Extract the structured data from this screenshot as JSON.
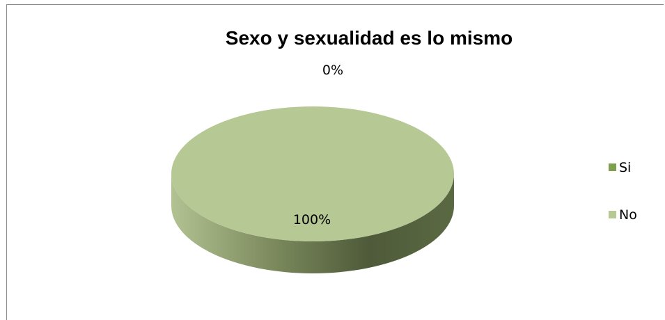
{
  "chart_data": {
    "type": "pie",
    "title": "Sexo y sexualidad es lo mismo",
    "categories": [
      "Si",
      "No"
    ],
    "values": [
      0,
      100
    ],
    "data_labels": [
      "0%",
      "100%"
    ],
    "colors": [
      "#7F9F4F",
      "#B6C995"
    ],
    "side_color_dark": "#4B5736",
    "side_color_light": "#A8B78A",
    "legend_position": "right",
    "style": "3d-pie"
  }
}
